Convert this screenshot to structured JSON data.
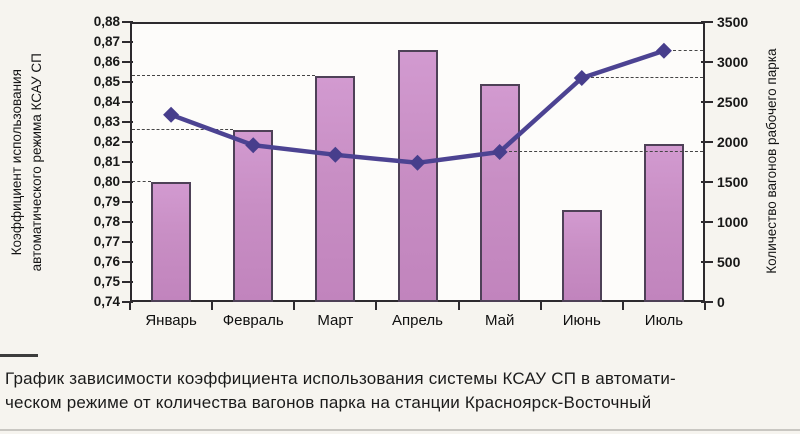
{
  "caption": {
    "line1": "График зависимости коэффициента использования системы КСАУ СП в автомати-",
    "line2": "ческом режиме от количества вагонов парка на станции Красноярск-Восточный"
  },
  "chart_data": {
    "type": "bar+line",
    "categories": [
      "Январь",
      "Февраль",
      "Март",
      "Апрель",
      "Май",
      "Июнь",
      "Июль"
    ],
    "series": [
      {
        "name": "Коэффициент использования автоматического режима КСАУ СП",
        "type": "bar",
        "axis": "left",
        "values": [
          0.8,
          0.826,
          0.853,
          0.866,
          0.849,
          0.786,
          0.819
        ],
        "color": "#c88ec4",
        "border_color": "#4e4157"
      },
      {
        "name": "Количество вагонов рабочего парка",
        "type": "line",
        "axis": "right",
        "values": [
          2340,
          1960,
          1840,
          1740,
          1875,
          2800,
          3140
        ],
        "color": "#4c4392",
        "marker": "diamond",
        "marker_color": "#473e8c"
      }
    ],
    "left_axis": {
      "title_line1": "Коэффициент использования",
      "title_line2": "автоматического режима КСАУ СП",
      "min": 0.74,
      "max": 0.88,
      "step": 0.01,
      "tick_labels": [
        "0,74",
        "0,75",
        "0,76",
        "0,77",
        "0,78",
        "0,79",
        "0,80",
        "0,81",
        "0,82",
        "0,83",
        "0,84",
        "0,85",
        "0,86",
        "0,87",
        "0,88"
      ]
    },
    "right_axis": {
      "title": "Количество вагонов рабочего парка",
      "min": 0,
      "max": 3500,
      "step": 500,
      "tick_labels": [
        "0",
        "500",
        "1000",
        "1500",
        "2000",
        "2500",
        "3000",
        "3500"
      ]
    },
    "dashed_leaders": [
      {
        "axis": "left",
        "month_index": 0,
        "value": 0.8
      },
      {
        "axis": "left",
        "month_index": 1,
        "value": 0.826
      },
      {
        "axis": "left",
        "month_index": 2,
        "value": 0.853
      },
      {
        "axis": "right",
        "month_index": 4,
        "value": 1875
      },
      {
        "axis": "right",
        "month_index": 5,
        "value": 2800
      },
      {
        "axis": "right",
        "month_index": 6,
        "value": 3140
      }
    ],
    "grid": false,
    "legend": "none"
  }
}
